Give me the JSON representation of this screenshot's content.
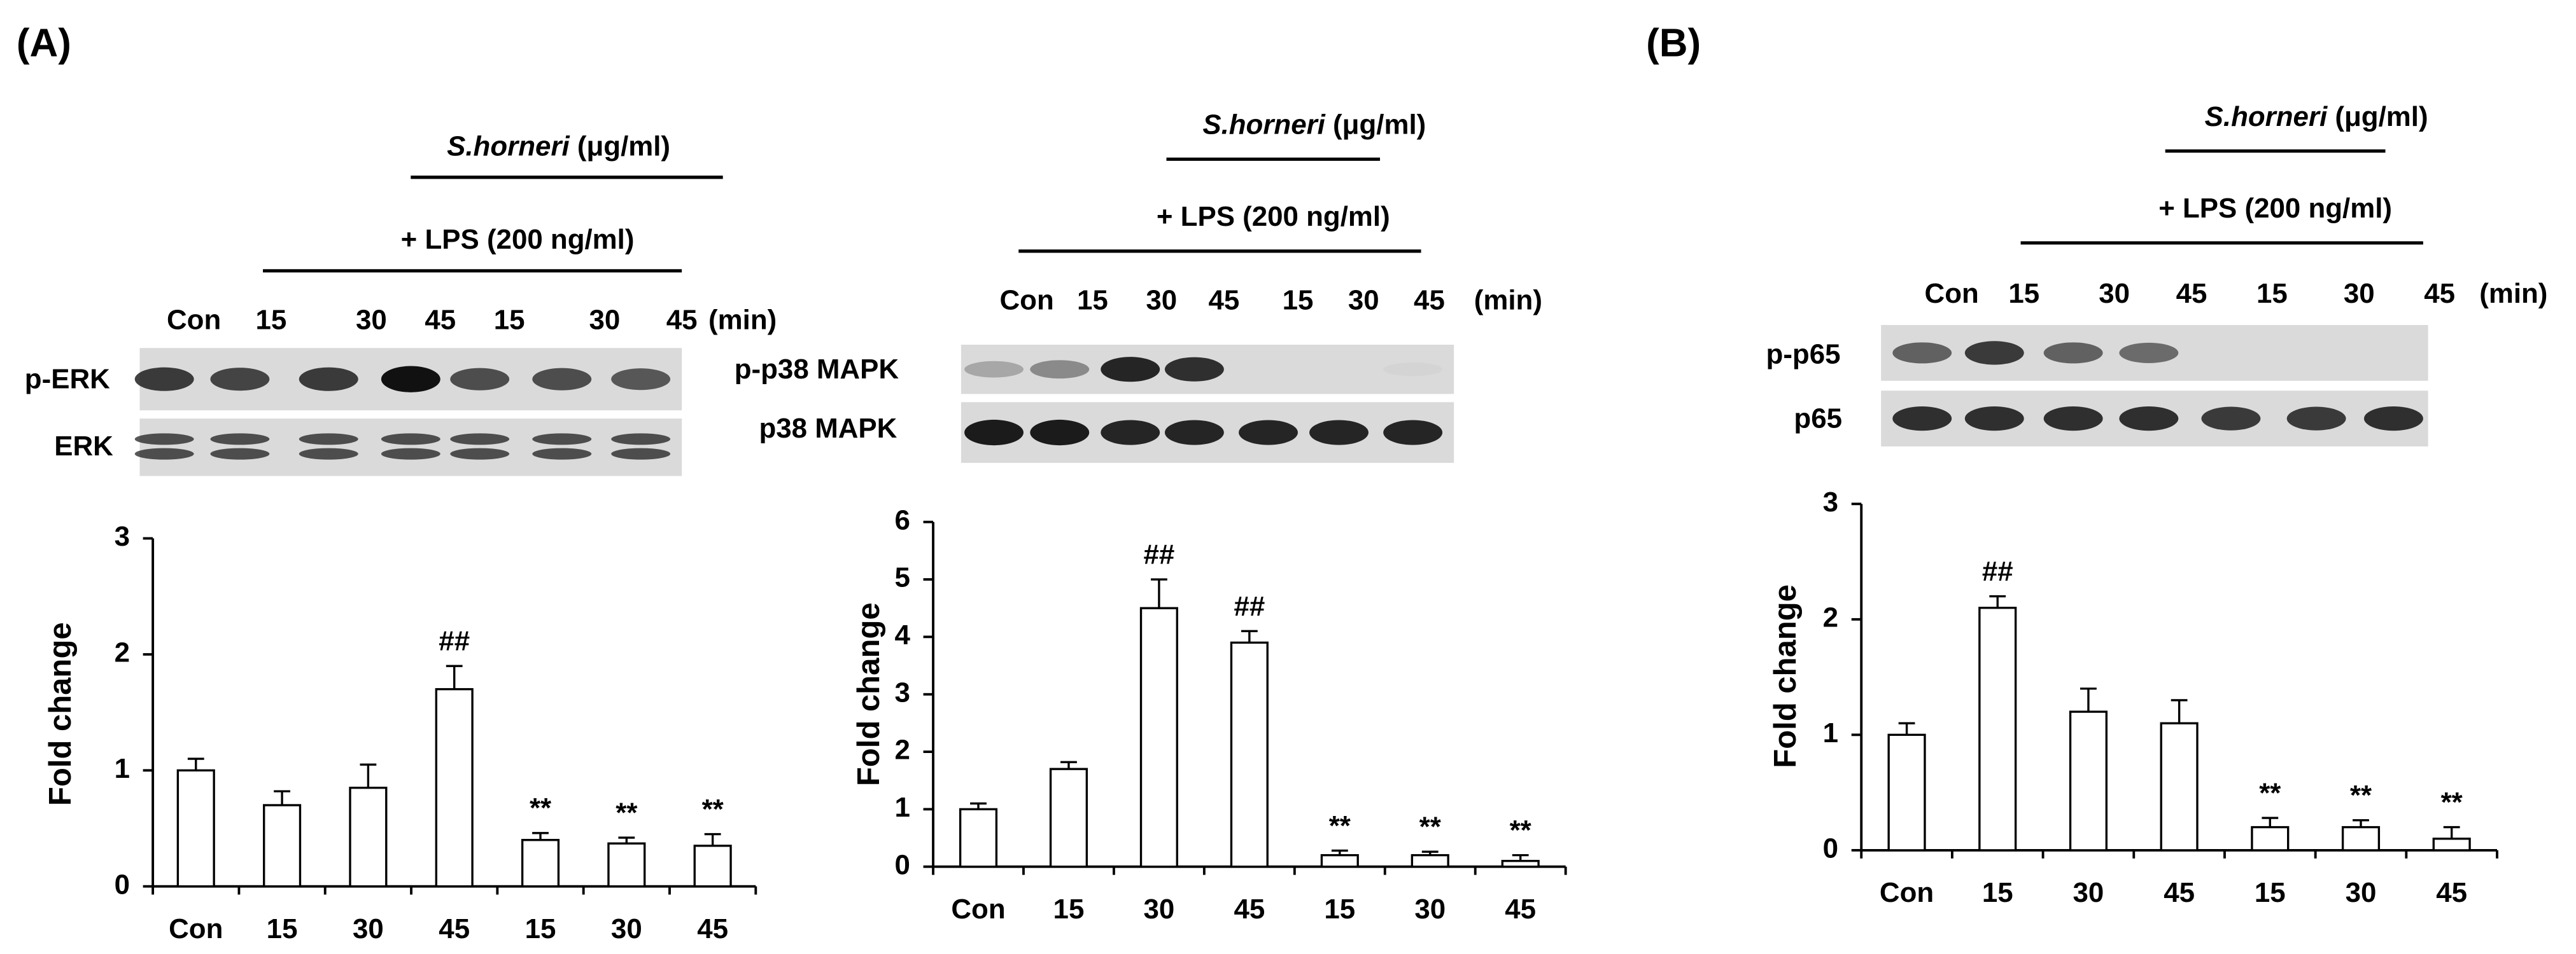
{
  "panel_labels": [
    "(A)",
    "(B)"
  ],
  "blots": [
    {
      "agent": "S.horneri",
      "agent_unit": "(μg/ml)",
      "treatment": "+ LPS (200 ng/ml)",
      "lanes": [
        "Con",
        "15",
        "30",
        "45",
        "15",
        "30",
        "45"
      ],
      "time_unit": "(min)",
      "rows": [
        "p-ERK",
        "ERK"
      ]
    },
    {
      "agent": "S.horneri",
      "agent_unit": "(μg/ml)",
      "treatment": "+ LPS (200 ng/ml)",
      "lanes": [
        "Con",
        "15",
        "30",
        "45",
        "15",
        "30",
        "45"
      ],
      "time_unit": "(min)",
      "rows": [
        "p-p38 MAPK",
        "p38 MAPK"
      ]
    },
    {
      "agent": "S.horneri",
      "agent_unit": "(μg/ml)",
      "treatment": "+ LPS (200 ng/ml)",
      "lanes": [
        "Con",
        "15",
        "30",
        "45",
        "15",
        "30",
        "45"
      ],
      "time_unit": "(min)",
      "rows": [
        "p-p65",
        "p65"
      ]
    }
  ],
  "chart_data": [
    {
      "type": "bar",
      "ylabel": "Fold change",
      "categories": [
        "Con",
        "15",
        "30",
        "45",
        "15",
        "30",
        "45"
      ],
      "values": [
        1.0,
        0.7,
        0.85,
        1.7,
        0.4,
        0.37,
        0.35
      ],
      "errors": [
        0.1,
        0.12,
        0.2,
        0.2,
        0.06,
        0.05,
        0.1
      ],
      "annotations": [
        null,
        null,
        null,
        "##",
        "**",
        "**",
        "**"
      ],
      "ylim": [
        0,
        3
      ],
      "yticks": [
        0,
        1,
        2,
        3
      ],
      "color": "#ffffff",
      "edge_color": "#000000"
    },
    {
      "type": "bar",
      "ylabel": "Fold change",
      "categories": [
        "Con",
        "15",
        "30",
        "45",
        "15",
        "30",
        "45"
      ],
      "values": [
        1.0,
        1.7,
        4.5,
        3.9,
        0.2,
        0.2,
        0.1
      ],
      "errors": [
        0.1,
        0.12,
        0.5,
        0.2,
        0.08,
        0.06,
        0.1
      ],
      "annotations": [
        null,
        null,
        "##",
        "##",
        "**",
        "**",
        "**"
      ],
      "ylim": [
        0,
        6
      ],
      "yticks": [
        0,
        1,
        2,
        3,
        4,
        5,
        6
      ],
      "color": "#ffffff",
      "edge_color": "#000000"
    },
    {
      "type": "bar",
      "ylabel": "Fold change",
      "categories": [
        "Con",
        "15",
        "30",
        "45",
        "15",
        "30",
        "45"
      ],
      "values": [
        1.0,
        2.1,
        1.2,
        1.1,
        0.2,
        0.2,
        0.1
      ],
      "errors": [
        0.1,
        0.1,
        0.2,
        0.2,
        0.08,
        0.06,
        0.1
      ],
      "annotations": [
        null,
        "##",
        null,
        null,
        "**",
        "**",
        "**"
      ],
      "ylim": [
        0,
        3
      ],
      "yticks": [
        0,
        1,
        2,
        3
      ],
      "color": "#ffffff",
      "edge_color": "#000000"
    }
  ]
}
